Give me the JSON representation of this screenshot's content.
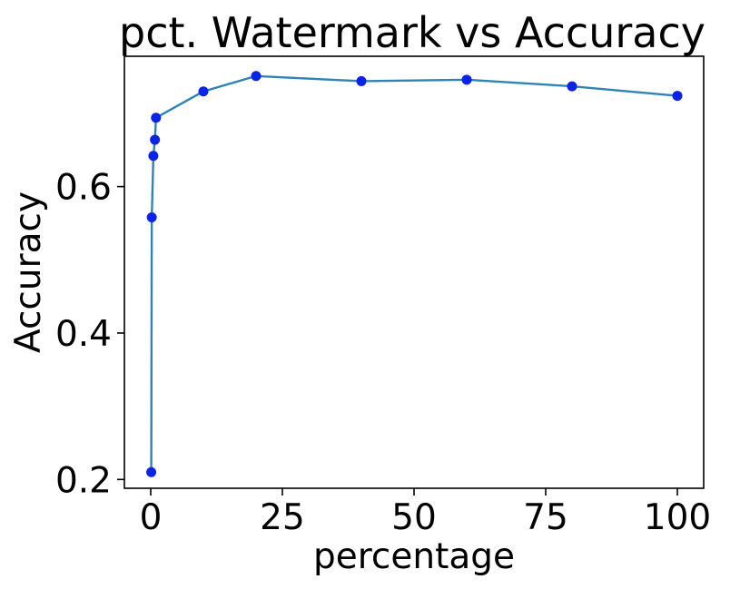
{
  "chart_data": {
    "type": "line",
    "title": "pct. Watermark vs Accuracy",
    "xlabel": "percentage",
    "ylabel": "Accuracy",
    "xlim": [
      -5,
      105
    ],
    "ylim": [
      0.188,
      0.778
    ],
    "xticks": [
      0,
      25,
      50,
      75,
      100
    ],
    "yticks": [
      0.2,
      0.4,
      0.6
    ],
    "xtick_labels": [
      "0",
      "25",
      "50",
      "75",
      "100"
    ],
    "ytick_labels": [
      "0.2",
      "0.4",
      "0.6"
    ],
    "grid": false,
    "legend": "none",
    "series": [
      {
        "x": [
          0.1,
          0.2,
          0.5,
          0.8,
          1,
          10,
          20,
          40,
          60,
          80,
          100
        ],
        "y": [
          0.21,
          0.558,
          0.642,
          0.664,
          0.694,
          0.73,
          0.751,
          0.744,
          0.746,
          0.737,
          0.724
        ],
        "line_color": "#2e84b5",
        "marker_color": "#0a23e6"
      }
    ]
  }
}
